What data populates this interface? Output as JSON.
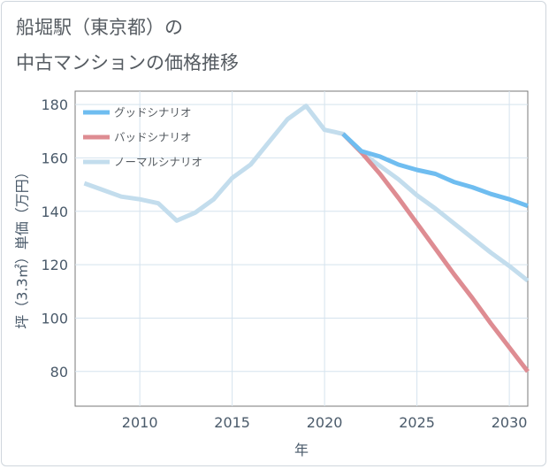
{
  "title_lines": [
    "船堀駅（東京都）の",
    "中古マンションの価格推移"
  ],
  "chart_data": {
    "type": "line",
    "title": "船堀駅（東京都）の中古マンションの価格推移",
    "xlabel": "年",
    "ylabel": "坪（3.3㎡）単価（万円）",
    "xlim": [
      2006.5,
      2031
    ],
    "ylim": [
      67,
      185
    ],
    "xticks": [
      2010,
      2015,
      2020,
      2025,
      2030
    ],
    "yticks": [
      80,
      100,
      120,
      140,
      160,
      180
    ],
    "grid": true,
    "legend_position": "top-left",
    "series": [
      {
        "name": "グッドシナリオ",
        "color": "#6fbdf0",
        "points": [
          [
            2021,
            169
          ],
          [
            2022,
            162.5
          ],
          [
            2023,
            160.5
          ],
          [
            2024,
            157.5
          ],
          [
            2025,
            155.5
          ],
          [
            2026,
            154
          ],
          [
            2027,
            151
          ],
          [
            2028,
            149
          ],
          [
            2029,
            146.5
          ],
          [
            2030,
            144.5
          ],
          [
            2031,
            142
          ]
        ]
      },
      {
        "name": "バッドシナリオ",
        "color": "#de8c92",
        "points": [
          [
            2021,
            169
          ],
          [
            2022,
            162
          ],
          [
            2023,
            154
          ],
          [
            2024,
            145
          ],
          [
            2025,
            135.5
          ],
          [
            2026,
            126
          ],
          [
            2027,
            116.5
          ],
          [
            2028,
            107.5
          ],
          [
            2029,
            98
          ],
          [
            2030,
            89
          ],
          [
            2031,
            80
          ]
        ]
      },
      {
        "name": "ノーマルシナリオ",
        "color": "#c3dded",
        "points": [
          [
            2007,
            150.5
          ],
          [
            2008,
            148
          ],
          [
            2009,
            145.5
          ],
          [
            2010,
            144.5
          ],
          [
            2011,
            143
          ],
          [
            2012,
            136.5
          ],
          [
            2013,
            139.5
          ],
          [
            2014,
            144.5
          ],
          [
            2015,
            152.5
          ],
          [
            2016,
            157.5
          ],
          [
            2017,
            166
          ],
          [
            2018,
            174.5
          ],
          [
            2019,
            179.5
          ],
          [
            2020,
            170.5
          ],
          [
            2021,
            169
          ],
          [
            2022,
            162
          ],
          [
            2023,
            157
          ],
          [
            2024,
            152
          ],
          [
            2025,
            146
          ],
          [
            2026,
            141
          ],
          [
            2027,
            135.5
          ],
          [
            2028,
            130
          ],
          [
            2029,
            124.5
          ],
          [
            2030,
            119.5
          ],
          [
            2031,
            114
          ]
        ]
      }
    ]
  }
}
